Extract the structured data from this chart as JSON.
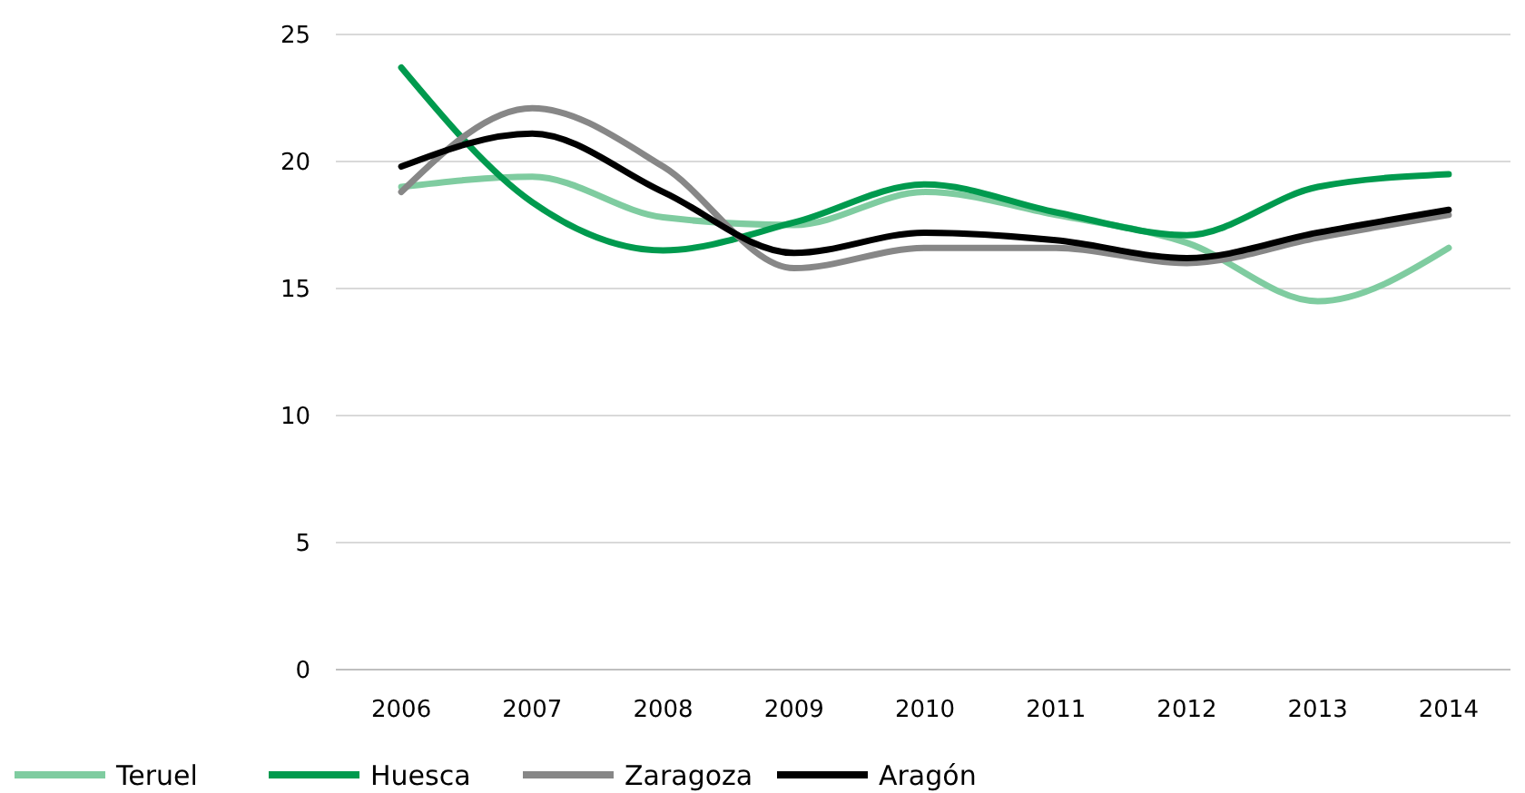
{
  "chart_data": {
    "type": "line",
    "categories": [
      "2006",
      "2007",
      "2008",
      "2009",
      "2010",
      "2011",
      "2012",
      "2013",
      "2014"
    ],
    "series": [
      {
        "name": "Teruel",
        "color": "#7fcca0",
        "values": [
          19.0,
          19.4,
          17.8,
          17.5,
          18.8,
          17.9,
          16.8,
          14.5,
          16.6
        ]
      },
      {
        "name": "Huesca",
        "color": "#009a4e",
        "values": [
          23.7,
          18.4,
          16.5,
          17.6,
          19.1,
          18.0,
          17.1,
          19.0,
          19.5
        ]
      },
      {
        "name": "Zaragoza",
        "color": "#878787",
        "values": [
          18.8,
          22.1,
          19.8,
          15.8,
          16.6,
          16.6,
          16.0,
          17.0,
          17.9
        ]
      },
      {
        "name": "Aragón",
        "color": "#000000",
        "values": [
          19.8,
          21.1,
          18.8,
          16.4,
          17.2,
          16.9,
          16.2,
          17.2,
          18.1
        ]
      }
    ],
    "ylim": [
      0,
      25
    ],
    "yticks": [
      0,
      5,
      10,
      15,
      20,
      25
    ],
    "grid": "y",
    "legend": "bottom",
    "marker": "none",
    "line_style": "solid"
  }
}
